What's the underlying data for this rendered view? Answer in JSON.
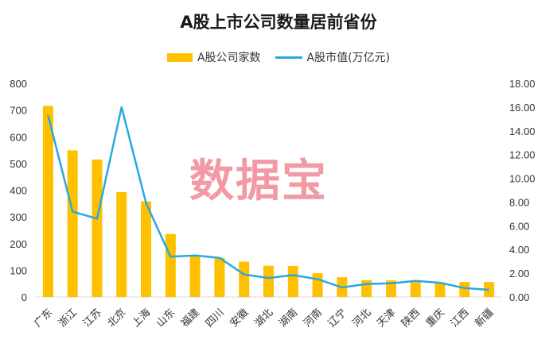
{
  "chart_data": {
    "type": "bar",
    "title": "A股上市公司数量居前省份",
    "categories": [
      "广东",
      "浙江",
      "江苏",
      "北京",
      "上海",
      "山东",
      "福建",
      "四川",
      "安徽",
      "湖北",
      "湖南",
      "河南",
      "辽宁",
      "河北",
      "天津",
      "陕西",
      "重庆",
      "江西",
      "新疆"
    ],
    "series": [
      {
        "name": "A股公司家数",
        "type": "bar",
        "axis": "left",
        "color": "#FFC000",
        "values": [
          716,
          549,
          515,
          393,
          358,
          236,
          152,
          147,
          132,
          117,
          116,
          89,
          74,
          63,
          62,
          57,
          54,
          56,
          56
        ]
      },
      {
        "name": "A股市值(万亿元)",
        "type": "line",
        "axis": "right",
        "color": "#29A9E0",
        "values": [
          15.3,
          7.2,
          6.6,
          16.0,
          7.9,
          3.4,
          3.5,
          3.3,
          1.9,
          1.6,
          1.85,
          1.5,
          0.8,
          1.1,
          1.15,
          1.35,
          1.2,
          0.75,
          0.6
        ]
      }
    ],
    "y_left": {
      "range": [
        0,
        800
      ],
      "ticks": [
        "0",
        "100",
        "200",
        "300",
        "400",
        "500",
        "600",
        "700",
        "800"
      ]
    },
    "y_right": {
      "range": [
        0,
        18
      ],
      "ticks": [
        "0.00",
        "2.00",
        "4.00",
        "6.00",
        "8.00",
        "10.00",
        "12.00",
        "14.00",
        "16.00",
        "18.00"
      ]
    },
    "grid": false,
    "legend_position": "top"
  },
  "watermark": "数据宝"
}
